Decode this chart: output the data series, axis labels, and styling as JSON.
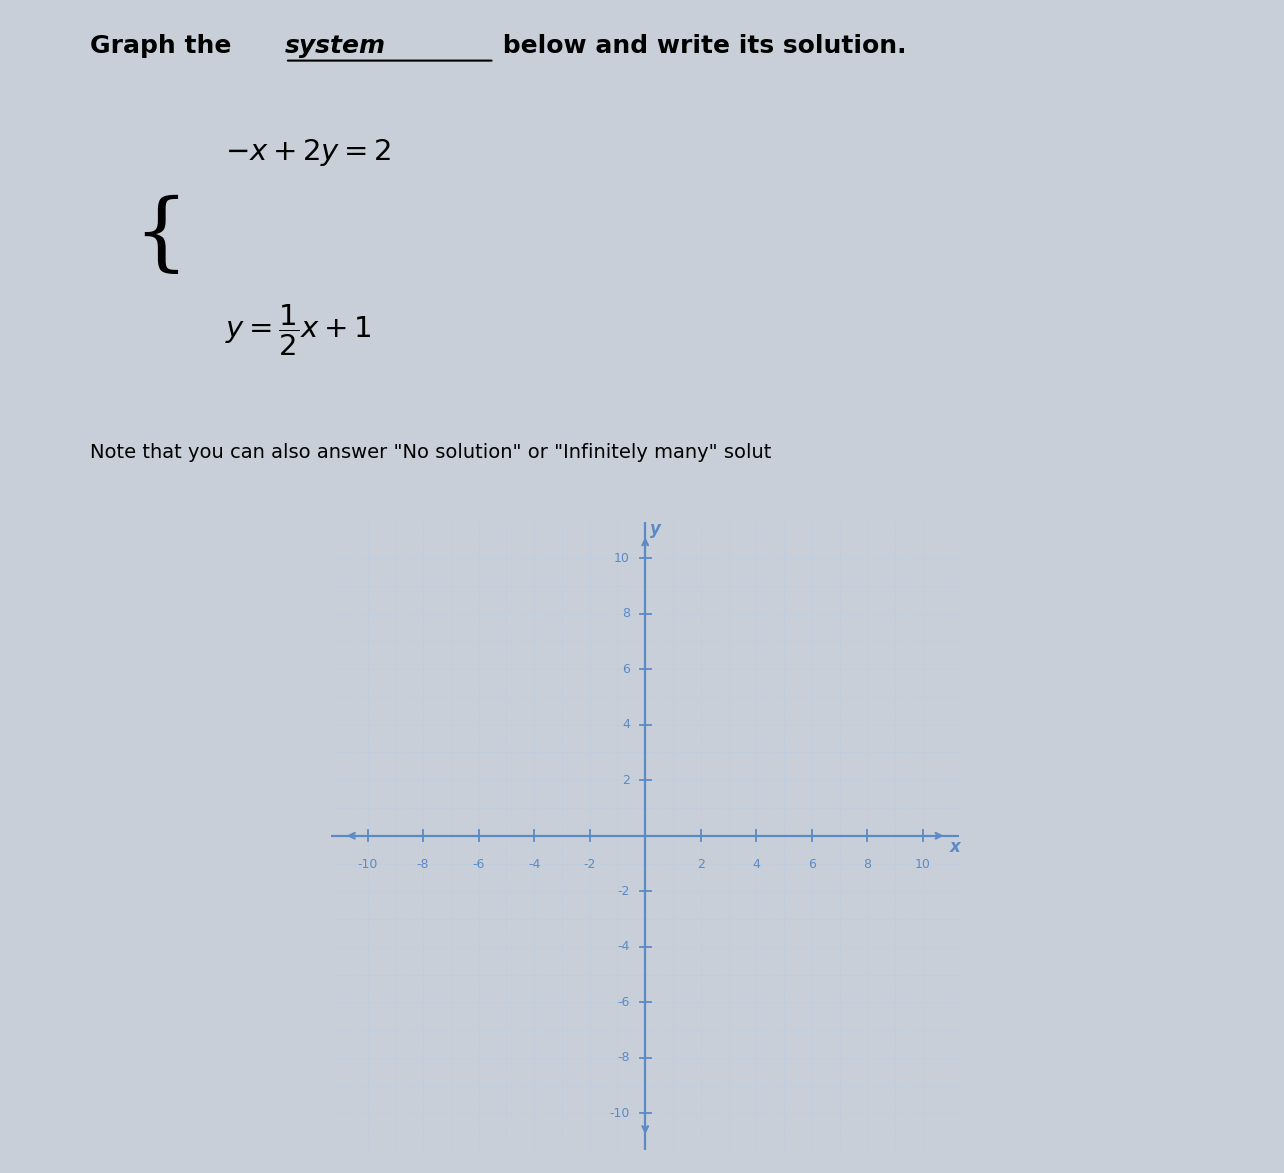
{
  "xmin": -10,
  "xmax": 10,
  "ymin": -10,
  "ymax": 10,
  "tick_step": 2,
  "grid_color": "#b8cce4",
  "axis_color": "#5b8ac5",
  "bg_color": "#dce6f0",
  "page_bg": "#c8cfd8",
  "tick_label_color": "#5b8ac5",
  "tick_fontsize": 9,
  "axis_label_fontsize": 12,
  "title_part1": "Graph the ",
  "title_system": "system",
  "title_part2": " below and write its solution.",
  "eq1": "$-x+2y=2$",
  "eq2": "$y=\\dfrac{1}{2}x+1$",
  "note": "Note that you can also answer \"No solution\" or \"Infinitely many\" solut"
}
